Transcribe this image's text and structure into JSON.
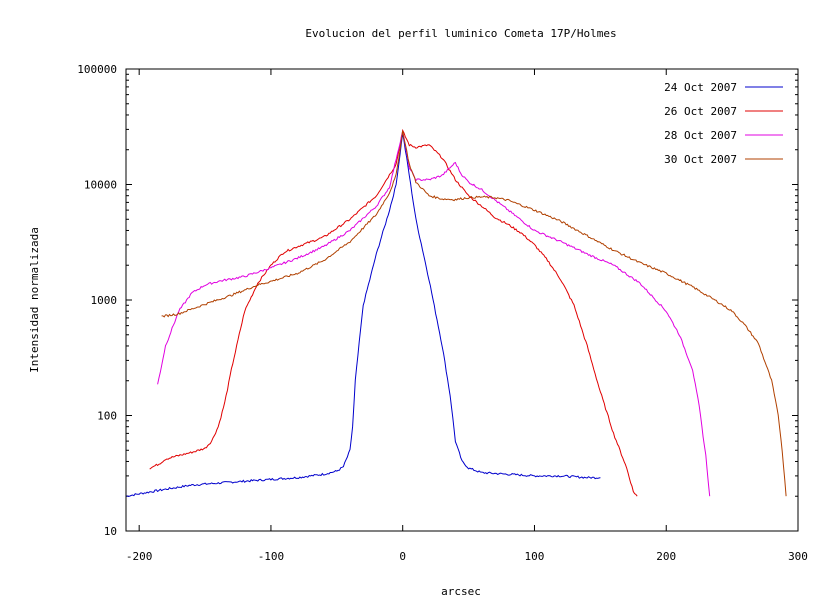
{
  "chart_data": {
    "type": "line",
    "title": "Evolucion del perfil luminico Cometa 17P/Holmes",
    "xlabel": "arcsec",
    "ylabel": "Intensidad normalizada",
    "xlim": [
      -210,
      300
    ],
    "ylim": [
      10,
      100000
    ],
    "yscale": "log",
    "grid": false,
    "legend_position": "top-right",
    "x_ticks": [
      -200,
      -100,
      0,
      100,
      200,
      300
    ],
    "x_tick_labels": [
      "-200",
      "-100",
      "0",
      "100",
      "200",
      "300"
    ],
    "y_ticks": [
      10,
      100,
      1000,
      10000,
      100000
    ],
    "y_tick_labels": [
      "10",
      "100",
      "1000",
      "10000",
      "100000"
    ],
    "series": [
      {
        "name": "24 Oct 2007",
        "color": "#0000cc",
        "points": [
          [
            -210,
            20
          ],
          [
            -200,
            21
          ],
          [
            -180,
            23
          ],
          [
            -160,
            25
          ],
          [
            -140,
            26
          ],
          [
            -120,
            27
          ],
          [
            -100,
            28
          ],
          [
            -80,
            29
          ],
          [
            -60,
            31
          ],
          [
            -50,
            33
          ],
          [
            -45,
            36
          ],
          [
            -40,
            50
          ],
          [
            -38,
            80
          ],
          [
            -36,
            200
          ],
          [
            -30,
            900
          ],
          [
            -20,
            2500
          ],
          [
            -10,
            6000
          ],
          [
            -5,
            10000
          ],
          [
            0,
            28000
          ],
          [
            5,
            12000
          ],
          [
            10,
            5000
          ],
          [
            20,
            1500
          ],
          [
            30,
            400
          ],
          [
            36,
            150
          ],
          [
            40,
            60
          ],
          [
            45,
            40
          ],
          [
            50,
            35
          ],
          [
            60,
            32
          ],
          [
            80,
            31
          ],
          [
            100,
            30
          ],
          [
            120,
            30
          ],
          [
            140,
            29
          ],
          [
            150,
            29
          ]
        ]
      },
      {
        "name": "26 Oct 2007",
        "color": "#e00000",
        "points": [
          [
            -192,
            35
          ],
          [
            -185,
            38
          ],
          [
            -180,
            42
          ],
          [
            -170,
            45
          ],
          [
            -160,
            48
          ],
          [
            -150,
            52
          ],
          [
            -145,
            60
          ],
          [
            -140,
            80
          ],
          [
            -135,
            130
          ],
          [
            -130,
            250
          ],
          [
            -125,
            450
          ],
          [
            -120,
            800
          ],
          [
            -110,
            1400
          ],
          [
            -100,
            2000
          ],
          [
            -90,
            2600
          ],
          [
            -80,
            2900
          ],
          [
            -60,
            3500
          ],
          [
            -40,
            5000
          ],
          [
            -20,
            8000
          ],
          [
            -5,
            15000
          ],
          [
            0,
            29000
          ],
          [
            5,
            22000
          ],
          [
            10,
            21000
          ],
          [
            20,
            22000
          ],
          [
            30,
            17000
          ],
          [
            40,
            11000
          ],
          [
            50,
            8000
          ],
          [
            60,
            6500
          ],
          [
            70,
            5200
          ],
          [
            80,
            4500
          ],
          [
            90,
            3800
          ],
          [
            100,
            3000
          ],
          [
            110,
            2200
          ],
          [
            120,
            1500
          ],
          [
            130,
            900
          ],
          [
            140,
            400
          ],
          [
            150,
            160
          ],
          [
            160,
            70
          ],
          [
            170,
            35
          ],
          [
            175,
            22
          ],
          [
            178,
            20
          ]
        ]
      },
      {
        "name": "28 Oct 2007",
        "color": "#e000e0",
        "points": [
          [
            -186,
            185
          ],
          [
            -180,
            400
          ],
          [
            -170,
            800
          ],
          [
            -160,
            1150
          ],
          [
            -150,
            1350
          ],
          [
            -140,
            1450
          ],
          [
            -120,
            1600
          ],
          [
            -100,
            1900
          ],
          [
            -80,
            2300
          ],
          [
            -60,
            2900
          ],
          [
            -40,
            4000
          ],
          [
            -20,
            6500
          ],
          [
            -10,
            9500
          ],
          [
            0,
            29000
          ],
          [
            5,
            14000
          ],
          [
            10,
            11000
          ],
          [
            20,
            11000
          ],
          [
            30,
            12000
          ],
          [
            36,
            14000
          ],
          [
            40,
            15500
          ],
          [
            44,
            12500
          ],
          [
            50,
            10500
          ],
          [
            60,
            9000
          ],
          [
            80,
            6000
          ],
          [
            100,
            4000
          ],
          [
            120,
            3200
          ],
          [
            140,
            2500
          ],
          [
            160,
            2000
          ],
          [
            180,
            1400
          ],
          [
            200,
            800
          ],
          [
            210,
            500
          ],
          [
            220,
            250
          ],
          [
            225,
            120
          ],
          [
            230,
            45
          ],
          [
            233,
            20
          ]
        ]
      },
      {
        "name": "30 Oct 2007",
        "color": "#b04000",
        "points": [
          [
            -183,
            720
          ],
          [
            -170,
            760
          ],
          [
            -150,
            920
          ],
          [
            -130,
            1100
          ],
          [
            -110,
            1350
          ],
          [
            -100,
            1450
          ],
          [
            -80,
            1700
          ],
          [
            -60,
            2200
          ],
          [
            -40,
            3200
          ],
          [
            -20,
            5500
          ],
          [
            -10,
            8500
          ],
          [
            -5,
            12000
          ],
          [
            0,
            29000
          ],
          [
            5,
            15000
          ],
          [
            10,
            10500
          ],
          [
            20,
            8000
          ],
          [
            30,
            7500
          ],
          [
            40,
            7400
          ],
          [
            50,
            7700
          ],
          [
            60,
            7800
          ],
          [
            70,
            7700
          ],
          [
            80,
            7300
          ],
          [
            100,
            6000
          ],
          [
            120,
            4800
          ],
          [
            140,
            3600
          ],
          [
            160,
            2700
          ],
          [
            180,
            2100
          ],
          [
            200,
            1700
          ],
          [
            220,
            1300
          ],
          [
            240,
            950
          ],
          [
            250,
            800
          ],
          [
            260,
            600
          ],
          [
            270,
            420
          ],
          [
            280,
            200
          ],
          [
            285,
            100
          ],
          [
            288,
            50
          ],
          [
            291,
            20
          ]
        ]
      }
    ]
  }
}
